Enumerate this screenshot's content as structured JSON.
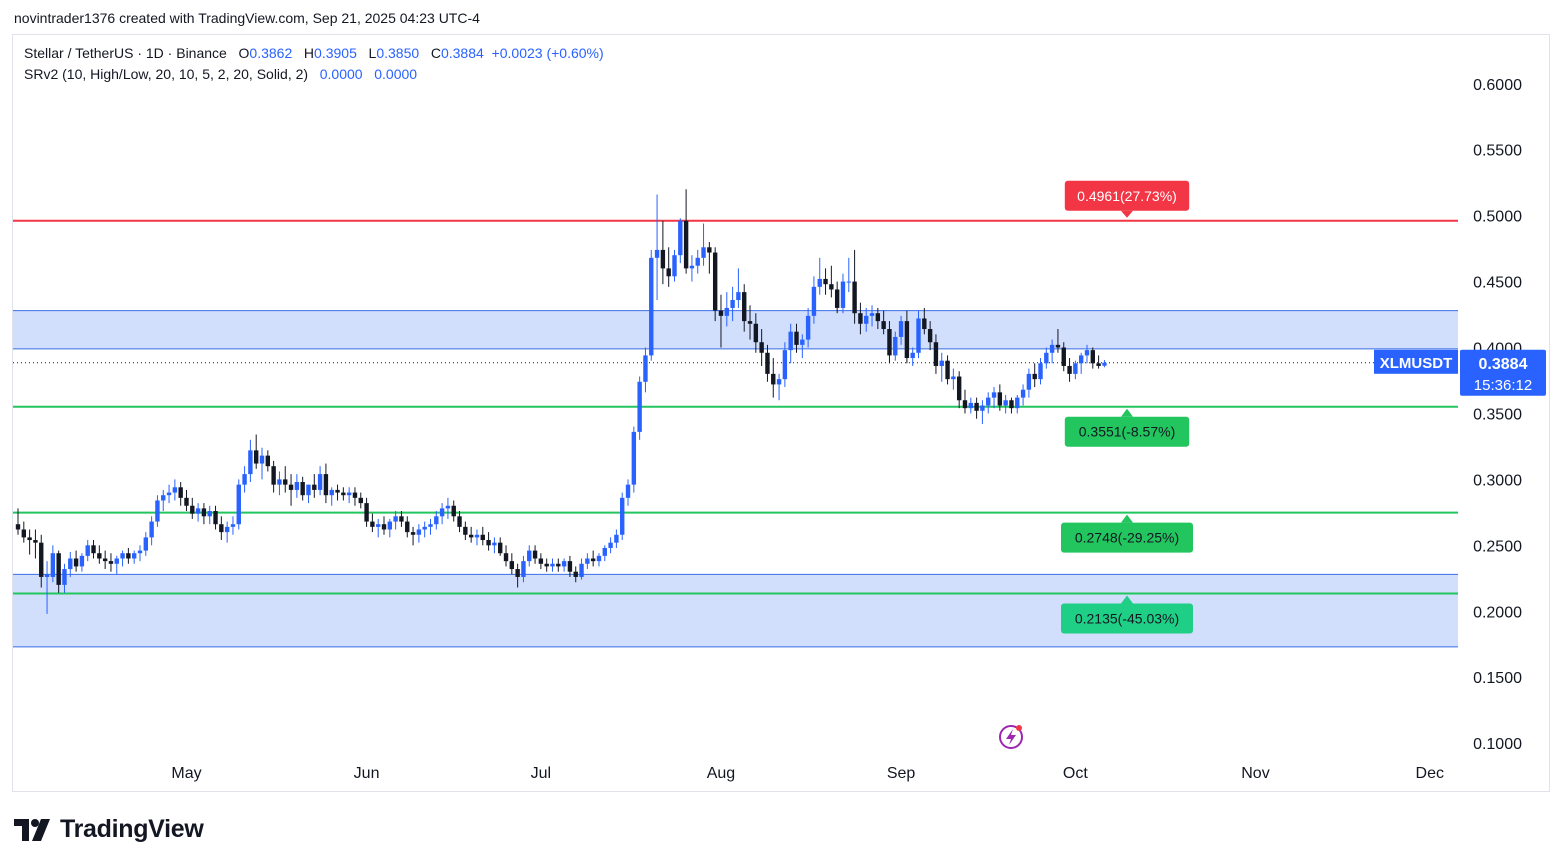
{
  "attribution": "novintrader1376 created with TradingView.com, Sep 21, 2025 04:23 UTC-4",
  "legend": {
    "symbol": "Stellar / TetherUS · 1D · Binance",
    "o_label": "O",
    "o": "0.3862",
    "h_label": "H",
    "h": "0.3905",
    "l_label": "L",
    "l": "0.3850",
    "c_label": "C",
    "c": "0.3884",
    "change": "+0.0023 (+0.60%)",
    "indicator": "SRv2 (10, High/Low, 20, 10, 5, 2, 20, Solid, 2)",
    "ind_v1": "0.0000",
    "ind_v2": "0.0000"
  },
  "price_tag": {
    "symbol": "XLMUSDT",
    "price": "0.3884",
    "countdown": "15:36:12"
  },
  "brand": "TradingView",
  "colors": {
    "up": "#2962ff",
    "down": "#131722",
    "resistance": "#f23645",
    "support": "#22c55e",
    "zone": "#c9d8fb",
    "zone_edge": "#3b6fe6",
    "tag_bg": "#2962ff",
    "logo_icon": "#9c27b0"
  },
  "chart_data": {
    "type": "candlestick",
    "y_ticks": [
      "0.6000",
      "0.5500",
      "0.5000",
      "0.4500",
      "0.4000",
      "0.3500",
      "0.3000",
      "0.2500",
      "0.2000",
      "0.1500",
      "0.1000"
    ],
    "ylim": [
      0.095,
      0.62
    ],
    "x_ticks": [
      "May",
      "Jun",
      "Jul",
      "Aug",
      "Sep",
      "Oct",
      "Nov",
      "Dec"
    ],
    "x_tick_dates": [
      "2025-05-01",
      "2025-06-01",
      "2025-07-01",
      "2025-08-01",
      "2025-09-01",
      "2025-10-01",
      "2025-11-01",
      "2025-12-01"
    ],
    "date_range": [
      "2025-04-02",
      "2025-12-05"
    ],
    "levels": [
      {
        "price": 0.4961,
        "label": "0.4961(27.73%)",
        "kind": "resistance"
      },
      {
        "price": 0.3551,
        "label": "0.3551(-8.57%)",
        "kind": "support"
      },
      {
        "price": 0.2748,
        "label": "0.2748(-29.25%)",
        "kind": "support"
      },
      {
        "price": 0.2135,
        "label": "0.2135(-45.03%)",
        "kind": "support"
      }
    ],
    "zones": [
      {
        "low": 0.399,
        "high": 0.428
      },
      {
        "low": 0.173,
        "high": 0.228
      }
    ],
    "last_price": 0.3884,
    "start_date": "2025-04-02",
    "candles": [
      [
        0.266,
        0.278,
        0.258,
        0.262
      ],
      [
        0.262,
        0.268,
        0.252,
        0.256
      ],
      [
        0.256,
        0.262,
        0.243,
        0.254
      ],
      [
        0.254,
        0.262,
        0.24,
        0.252
      ],
      [
        0.252,
        0.258,
        0.218,
        0.226
      ],
      [
        0.226,
        0.238,
        0.198,
        0.228
      ],
      [
        0.226,
        0.25,
        0.222,
        0.244
      ],
      [
        0.244,
        0.246,
        0.214,
        0.22
      ],
      [
        0.22,
        0.236,
        0.214,
        0.232
      ],
      [
        0.232,
        0.245,
        0.226,
        0.24
      ],
      [
        0.24,
        0.246,
        0.23,
        0.234
      ],
      [
        0.234,
        0.244,
        0.23,
        0.242
      ],
      [
        0.242,
        0.254,
        0.238,
        0.25
      ],
      [
        0.25,
        0.254,
        0.24,
        0.244
      ],
      [
        0.244,
        0.25,
        0.236,
        0.24
      ],
      [
        0.24,
        0.246,
        0.232,
        0.238
      ],
      [
        0.238,
        0.244,
        0.23,
        0.236
      ],
      [
        0.236,
        0.242,
        0.228,
        0.24
      ],
      [
        0.24,
        0.246,
        0.234,
        0.244
      ],
      [
        0.244,
        0.248,
        0.236,
        0.24
      ],
      [
        0.24,
        0.246,
        0.236,
        0.244
      ],
      [
        0.244,
        0.25,
        0.238,
        0.246
      ],
      [
        0.246,
        0.26,
        0.242,
        0.256
      ],
      [
        0.256,
        0.272,
        0.25,
        0.268
      ],
      [
        0.268,
        0.288,
        0.264,
        0.284
      ],
      [
        0.284,
        0.292,
        0.276,
        0.288
      ],
      [
        0.288,
        0.296,
        0.282,
        0.29
      ],
      [
        0.29,
        0.3,
        0.284,
        0.294
      ],
      [
        0.294,
        0.298,
        0.28,
        0.286
      ],
      [
        0.286,
        0.292,
        0.276,
        0.28
      ],
      [
        0.28,
        0.286,
        0.27,
        0.274
      ],
      [
        0.274,
        0.282,
        0.268,
        0.278
      ],
      [
        0.278,
        0.282,
        0.266,
        0.272
      ],
      [
        0.272,
        0.28,
        0.266,
        0.276
      ],
      [
        0.276,
        0.28,
        0.262,
        0.266
      ],
      [
        0.266,
        0.272,
        0.254,
        0.26
      ],
      [
        0.26,
        0.268,
        0.252,
        0.264
      ],
      [
        0.264,
        0.272,
        0.258,
        0.266
      ],
      [
        0.266,
        0.3,
        0.262,
        0.296
      ],
      [
        0.296,
        0.31,
        0.29,
        0.304
      ],
      [
        0.304,
        0.33,
        0.298,
        0.322
      ],
      [
        0.322,
        0.334,
        0.308,
        0.312
      ],
      [
        0.312,
        0.324,
        0.3,
        0.318
      ],
      [
        0.318,
        0.322,
        0.306,
        0.31
      ],
      [
        0.31,
        0.314,
        0.29,
        0.296
      ],
      [
        0.296,
        0.306,
        0.288,
        0.3
      ],
      [
        0.3,
        0.31,
        0.29,
        0.296
      ],
      [
        0.296,
        0.304,
        0.28,
        0.292
      ],
      [
        0.292,
        0.304,
        0.286,
        0.298
      ],
      [
        0.298,
        0.302,
        0.284,
        0.288
      ],
      [
        0.288,
        0.296,
        0.282,
        0.296
      ],
      [
        0.296,
        0.304,
        0.286,
        0.292
      ],
      [
        0.292,
        0.31,
        0.288,
        0.304
      ],
      [
        0.304,
        0.312,
        0.282,
        0.288
      ],
      [
        0.288,
        0.294,
        0.28,
        0.292
      ],
      [
        0.292,
        0.296,
        0.284,
        0.29
      ],
      [
        0.29,
        0.294,
        0.284,
        0.288
      ],
      [
        0.288,
        0.294,
        0.282,
        0.29
      ],
      [
        0.29,
        0.294,
        0.28,
        0.286
      ],
      [
        0.286,
        0.29,
        0.278,
        0.282
      ],
      [
        0.282,
        0.286,
        0.264,
        0.268
      ],
      [
        0.268,
        0.274,
        0.26,
        0.264
      ],
      [
        0.264,
        0.27,
        0.256,
        0.266
      ],
      [
        0.266,
        0.272,
        0.258,
        0.262
      ],
      [
        0.262,
        0.27,
        0.256,
        0.268
      ],
      [
        0.268,
        0.276,
        0.262,
        0.272
      ],
      [
        0.272,
        0.276,
        0.264,
        0.268
      ],
      [
        0.268,
        0.272,
        0.256,
        0.26
      ],
      [
        0.26,
        0.264,
        0.25,
        0.258
      ],
      [
        0.258,
        0.266,
        0.252,
        0.262
      ],
      [
        0.262,
        0.268,
        0.256,
        0.264
      ],
      [
        0.264,
        0.27,
        0.258,
        0.266
      ],
      [
        0.266,
        0.276,
        0.262,
        0.272
      ],
      [
        0.272,
        0.282,
        0.266,
        0.278
      ],
      [
        0.278,
        0.286,
        0.27,
        0.28
      ],
      [
        0.28,
        0.284,
        0.268,
        0.272
      ],
      [
        0.272,
        0.276,
        0.26,
        0.264
      ],
      [
        0.264,
        0.268,
        0.254,
        0.258
      ],
      [
        0.258,
        0.264,
        0.252,
        0.256
      ],
      [
        0.256,
        0.262,
        0.25,
        0.258
      ],
      [
        0.258,
        0.264,
        0.25,
        0.254
      ],
      [
        0.254,
        0.26,
        0.246,
        0.25
      ],
      [
        0.25,
        0.256,
        0.244,
        0.252
      ],
      [
        0.252,
        0.256,
        0.242,
        0.244
      ],
      [
        0.244,
        0.25,
        0.234,
        0.238
      ],
      [
        0.238,
        0.244,
        0.228,
        0.232
      ],
      [
        0.232,
        0.236,
        0.218,
        0.226
      ],
      [
        0.226,
        0.242,
        0.222,
        0.238
      ],
      [
        0.238,
        0.25,
        0.234,
        0.246
      ],
      [
        0.246,
        0.25,
        0.236,
        0.24
      ],
      [
        0.24,
        0.244,
        0.232,
        0.236
      ],
      [
        0.236,
        0.24,
        0.23,
        0.234
      ],
      [
        0.234,
        0.24,
        0.23,
        0.236
      ],
      [
        0.236,
        0.24,
        0.23,
        0.234
      ],
      [
        0.234,
        0.24,
        0.23,
        0.238
      ],
      [
        0.238,
        0.242,
        0.226,
        0.23
      ],
      [
        0.23,
        0.234,
        0.222,
        0.226
      ],
      [
        0.226,
        0.24,
        0.224,
        0.236
      ],
      [
        0.236,
        0.244,
        0.232,
        0.24
      ],
      [
        0.24,
        0.246,
        0.234,
        0.238
      ],
      [
        0.238,
        0.244,
        0.234,
        0.242
      ],
      [
        0.242,
        0.25,
        0.238,
        0.248
      ],
      [
        0.248,
        0.256,
        0.244,
        0.252
      ],
      [
        0.252,
        0.262,
        0.248,
        0.258
      ],
      [
        0.258,
        0.29,
        0.254,
        0.286
      ],
      [
        0.286,
        0.3,
        0.28,
        0.296
      ],
      [
        0.296,
        0.34,
        0.29,
        0.336
      ],
      [
        0.336,
        0.378,
        0.33,
        0.374
      ],
      [
        0.374,
        0.4,
        0.366,
        0.394
      ],
      [
        0.394,
        0.474,
        0.39,
        0.468
      ],
      [
        0.468,
        0.516,
        0.436,
        0.474
      ],
      [
        0.474,
        0.496,
        0.448,
        0.46
      ],
      [
        0.46,
        0.476,
        0.446,
        0.454
      ],
      [
        0.454,
        0.474,
        0.45,
        0.47
      ],
      [
        0.47,
        0.498,
        0.464,
        0.496
      ],
      [
        0.496,
        0.52,
        0.456,
        0.46
      ],
      [
        0.46,
        0.47,
        0.45,
        0.462
      ],
      [
        0.462,
        0.474,
        0.456,
        0.468
      ],
      [
        0.468,
        0.494,
        0.462,
        0.476
      ],
      [
        0.476,
        0.48,
        0.456,
        0.472
      ],
      [
        0.472,
        0.476,
        0.42,
        0.428
      ],
      [
        0.428,
        0.44,
        0.4,
        0.424
      ],
      [
        0.424,
        0.442,
        0.416,
        0.43
      ],
      [
        0.43,
        0.446,
        0.42,
        0.436
      ],
      [
        0.436,
        0.46,
        0.43,
        0.442
      ],
      [
        0.442,
        0.448,
        0.412,
        0.42
      ],
      [
        0.42,
        0.432,
        0.406,
        0.418
      ],
      [
        0.418,
        0.426,
        0.396,
        0.404
      ],
      [
        0.404,
        0.414,
        0.386,
        0.396
      ],
      [
        0.396,
        0.402,
        0.374,
        0.38
      ],
      [
        0.38,
        0.392,
        0.362,
        0.372
      ],
      [
        0.372,
        0.38,
        0.36,
        0.376
      ],
      [
        0.376,
        0.404,
        0.37,
        0.398
      ],
      [
        0.398,
        0.418,
        0.388,
        0.412
      ],
      [
        0.412,
        0.418,
        0.396,
        0.402
      ],
      [
        0.402,
        0.41,
        0.392,
        0.406
      ],
      [
        0.406,
        0.43,
        0.4,
        0.424
      ],
      [
        0.424,
        0.454,
        0.418,
        0.446
      ],
      [
        0.446,
        0.468,
        0.44,
        0.452
      ],
      [
        0.452,
        0.46,
        0.44,
        0.448
      ],
      [
        0.448,
        0.462,
        0.438,
        0.444
      ],
      [
        0.444,
        0.45,
        0.426,
        0.43
      ],
      [
        0.43,
        0.456,
        0.426,
        0.45
      ],
      [
        0.45,
        0.468,
        0.442,
        0.45
      ],
      [
        0.45,
        0.474,
        0.418,
        0.426
      ],
      [
        0.426,
        0.434,
        0.41,
        0.418
      ],
      [
        0.418,
        0.43,
        0.412,
        0.424
      ],
      [
        0.424,
        0.432,
        0.416,
        0.426
      ],
      [
        0.426,
        0.43,
        0.414,
        0.42
      ],
      [
        0.42,
        0.428,
        0.41,
        0.414
      ],
      [
        0.414,
        0.42,
        0.388,
        0.394
      ],
      [
        0.394,
        0.412,
        0.39,
        0.408
      ],
      [
        0.408,
        0.424,
        0.402,
        0.42
      ],
      [
        0.42,
        0.428,
        0.388,
        0.392
      ],
      [
        0.392,
        0.4,
        0.386,
        0.396
      ],
      [
        0.396,
        0.428,
        0.392,
        0.422
      ],
      [
        0.422,
        0.43,
        0.41,
        0.414
      ],
      [
        0.414,
        0.42,
        0.398,
        0.404
      ],
      [
        0.404,
        0.41,
        0.38,
        0.386
      ],
      [
        0.386,
        0.396,
        0.374,
        0.39
      ],
      [
        0.39,
        0.394,
        0.372,
        0.376
      ],
      [
        0.376,
        0.384,
        0.368,
        0.378
      ],
      [
        0.378,
        0.382,
        0.354,
        0.36
      ],
      [
        0.36,
        0.368,
        0.35,
        0.354
      ],
      [
        0.354,
        0.362,
        0.35,
        0.358
      ],
      [
        0.358,
        0.362,
        0.346,
        0.352
      ],
      [
        0.352,
        0.36,
        0.342,
        0.356
      ],
      [
        0.356,
        0.366,
        0.35,
        0.362
      ],
      [
        0.362,
        0.37,
        0.354,
        0.366
      ],
      [
        0.366,
        0.372,
        0.352,
        0.356
      ],
      [
        0.356,
        0.364,
        0.35,
        0.36
      ],
      [
        0.36,
        0.362,
        0.35,
        0.354
      ],
      [
        0.354,
        0.364,
        0.35,
        0.362
      ],
      [
        0.362,
        0.372,
        0.356,
        0.368
      ],
      [
        0.368,
        0.384,
        0.362,
        0.38
      ],
      [
        0.38,
        0.388,
        0.37,
        0.376
      ],
      [
        0.376,
        0.392,
        0.372,
        0.388
      ],
      [
        0.388,
        0.4,
        0.384,
        0.396
      ],
      [
        0.396,
        0.406,
        0.388,
        0.402
      ],
      [
        0.402,
        0.414,
        0.396,
        0.4
      ],
      [
        0.4,
        0.404,
        0.382,
        0.386
      ],
      [
        0.386,
        0.392,
        0.374,
        0.38
      ],
      [
        0.38,
        0.39,
        0.376,
        0.388
      ],
      [
        0.388,
        0.396,
        0.38,
        0.394
      ],
      [
        0.394,
        0.402,
        0.388,
        0.398
      ],
      [
        0.398,
        0.4,
        0.384,
        0.388
      ],
      [
        0.388,
        0.394,
        0.384,
        0.386
      ],
      [
        0.3862,
        0.3905,
        0.385,
        0.3884
      ]
    ]
  }
}
